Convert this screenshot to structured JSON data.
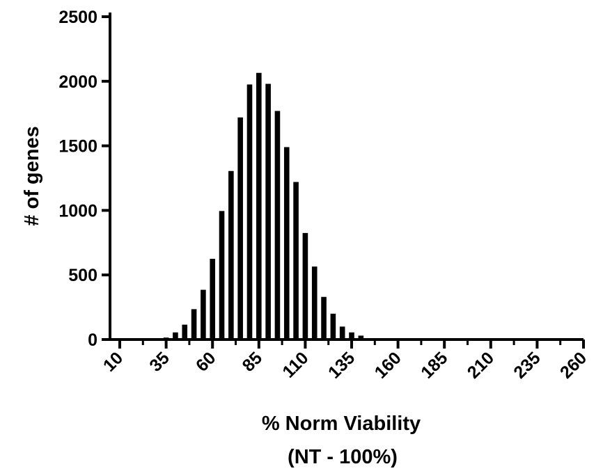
{
  "chart_data": {
    "type": "bar",
    "title": "",
    "xlabel": [
      "% Norm Viability",
      "(NT - 100%)"
    ],
    "ylabel": "# of genes",
    "xlim": [
      10,
      260
    ],
    "ylim": [
      0,
      2500
    ],
    "x_ticks": [
      "10",
      "35",
      "60",
      "85",
      "110",
      "135",
      "160",
      "185",
      "210",
      "235",
      "260"
    ],
    "y_ticks": [
      "0",
      "500",
      "1000",
      "1500",
      "2000",
      "2500"
    ],
    "grid": false,
    "legend": "none",
    "bar_color": "#000000",
    "x": [
      35,
      40,
      45,
      50,
      55,
      60,
      65,
      70,
      75,
      80,
      85,
      90,
      95,
      100,
      105,
      110,
      115,
      120,
      125,
      130,
      135,
      140
    ],
    "values": [
      15,
      55,
      115,
      235,
      385,
      625,
      995,
      1305,
      1720,
      1975,
      2065,
      1980,
      1770,
      1490,
      1220,
      825,
      565,
      330,
      200,
      100,
      55,
      30
    ]
  }
}
